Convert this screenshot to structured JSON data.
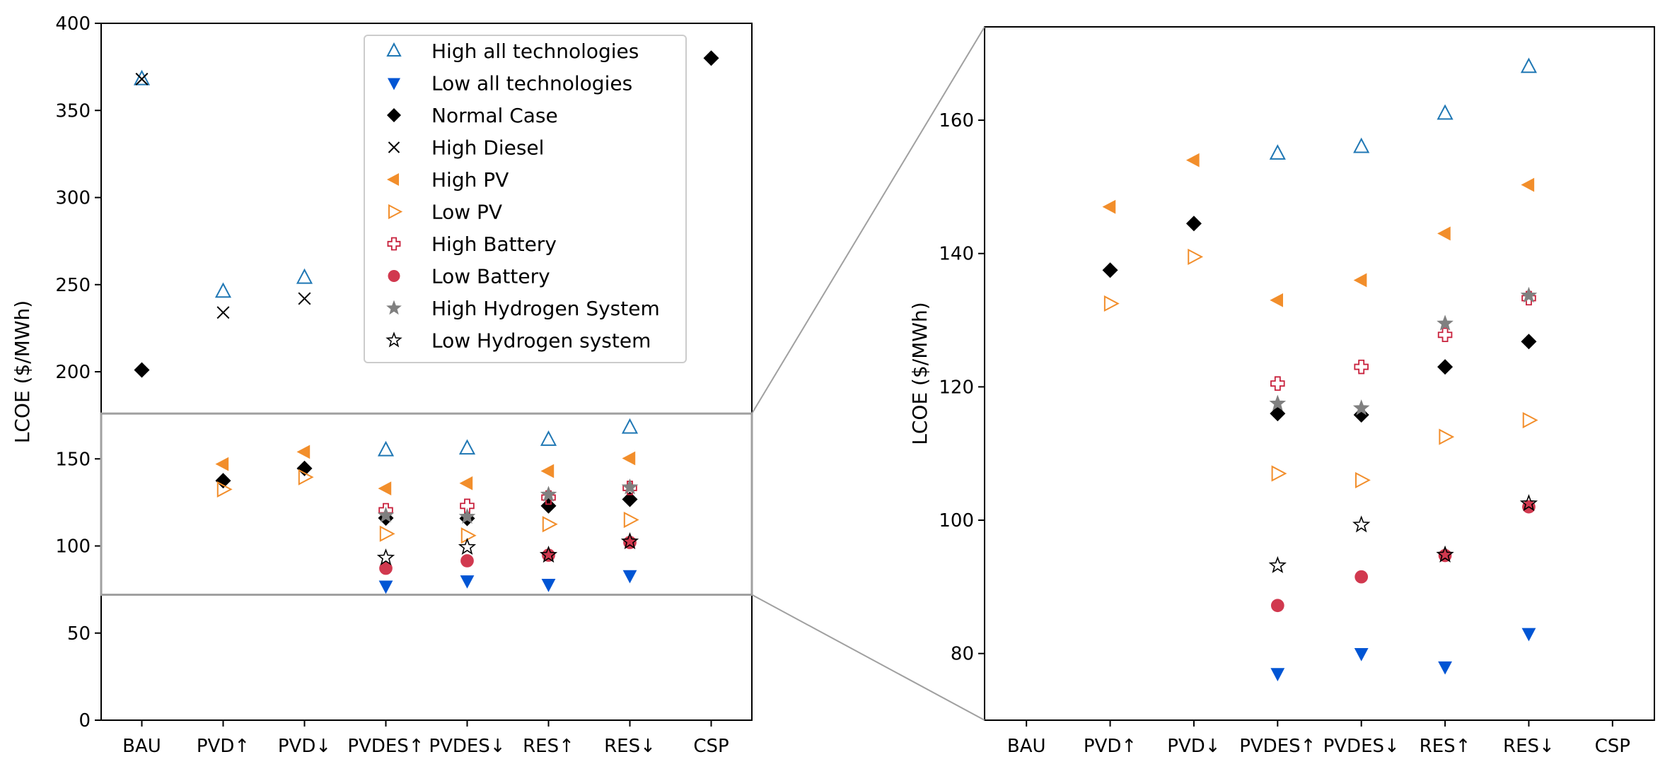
{
  "chart_data": {
    "type": "scatter",
    "categories": [
      "BAU",
      "PVD↑",
      "PVD↓",
      "PVDES↑",
      "PVDES↓",
      "RES↑",
      "RES↓",
      "CSP"
    ],
    "ylabel": "LCOE ($/MWh)",
    "xlabel": "",
    "legend_position": "top-center",
    "series": [
      {
        "name": "High all technologies",
        "marker": "triangle-up-open",
        "color": "#1f77b4",
        "values": [
          368,
          246,
          254,
          155,
          156,
          161,
          168,
          null
        ]
      },
      {
        "name": "Low all technologies",
        "marker": "triangle-down-filled",
        "color": "#0055d4",
        "values": [
          null,
          null,
          null,
          77,
          80,
          78,
          83,
          null
        ]
      },
      {
        "name": "Normal Case",
        "marker": "diamond-filled",
        "color": "#000000",
        "values": [
          201,
          137.5,
          144.5,
          116,
          115.8,
          123,
          126.8,
          380
        ]
      },
      {
        "name": "High Diesel",
        "marker": "x",
        "color": "#000000",
        "values": [
          368,
          234,
          242,
          null,
          null,
          null,
          null,
          null
        ]
      },
      {
        "name": "High PV",
        "marker": "triangle-left-filled",
        "color": "#f28e2b",
        "values": [
          null,
          147,
          154,
          133,
          136,
          143,
          150.3,
          null
        ]
      },
      {
        "name": "Low PV",
        "marker": "triangle-right-open",
        "color": "#f28e2b",
        "values": [
          null,
          132.5,
          139.5,
          107,
          106,
          112.5,
          115,
          null
        ]
      },
      {
        "name": "High Battery",
        "marker": "plus-open",
        "color": "#c8213c",
        "values": [
          null,
          null,
          null,
          120.5,
          123,
          127.8,
          133.3,
          null
        ]
      },
      {
        "name": "Low Battery",
        "marker": "circle-filled",
        "color": "#d1394f",
        "values": [
          null,
          null,
          null,
          87.2,
          91.5,
          94.7,
          102,
          null
        ]
      },
      {
        "name": "High Hydrogen System",
        "marker": "star-filled",
        "color": "#808080",
        "values": [
          null,
          null,
          null,
          117.5,
          116.8,
          129.5,
          133.7,
          null
        ]
      },
      {
        "name": "Low Hydrogen system",
        "marker": "star-open",
        "color": "#000000",
        "values": [
          null,
          null,
          null,
          93.2,
          99.3,
          94.8,
          102.5,
          null
        ]
      }
    ],
    "panels": [
      {
        "name": "main",
        "ylim": [
          0,
          400
        ],
        "yticks": [
          0,
          50,
          100,
          150,
          200,
          250,
          300,
          350,
          400
        ]
      },
      {
        "name": "zoom",
        "ylim": [
          70,
          174
        ],
        "yticks": [
          80,
          100,
          120,
          140,
          160
        ]
      }
    ],
    "zoom_region": {
      "ylim": [
        72,
        176
      ]
    }
  },
  "colors": {
    "frame": "#000000",
    "zoom_box": "#a0a0a0",
    "connector": "#a0a0a0"
  }
}
